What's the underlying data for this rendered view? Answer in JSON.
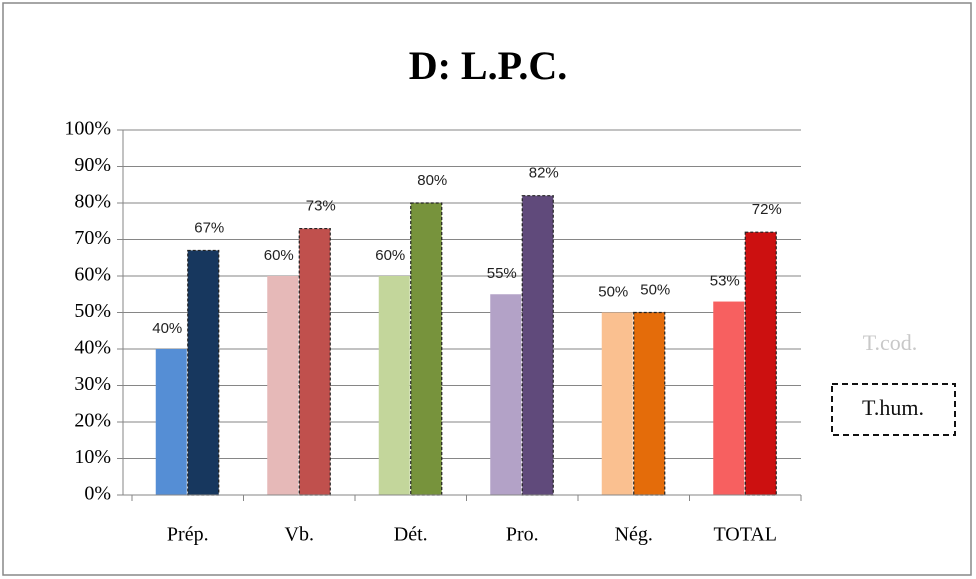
{
  "chart_data": {
    "type": "bar",
    "title": "D: L.P.C.",
    "categories": [
      "Prép.",
      "Vb.",
      "Dét.",
      "Pro.",
      "Nég.",
      "TOTAL"
    ],
    "series": [
      {
        "name": "T.cod.",
        "colors": [
          "#558ed5",
          "#e6b9b8",
          "#c3d69b",
          "#b3a2c7",
          "#fac090",
          "#f76060"
        ],
        "values": [
          40,
          60,
          60,
          55,
          50,
          53
        ],
        "value_labels": [
          "40%",
          "60%",
          "60%",
          "55%",
          "50%",
          "53%"
        ]
      },
      {
        "name": "T.hum.",
        "colors": [
          "#17375e",
          "#c0504d",
          "#77933c",
          "#604a7b",
          "#e46c0a",
          "#cc1010"
        ],
        "values": [
          67,
          73,
          80,
          82,
          50,
          72
        ],
        "value_labels": [
          "67%",
          "73%",
          "80%",
          "82%",
          "50%",
          "72%"
        ]
      }
    ],
    "ylim": [
      0,
      100
    ],
    "yticks": [
      {
        "value": 0,
        "label": "0%"
      },
      {
        "value": 10,
        "label": "10%"
      },
      {
        "value": 20,
        "label": "20%"
      },
      {
        "value": 30,
        "label": "30%"
      },
      {
        "value": 40,
        "label": "40%"
      },
      {
        "value": 50,
        "label": "50%"
      },
      {
        "value": 60,
        "label": "60%"
      },
      {
        "value": 70,
        "label": "70%"
      },
      {
        "value": 80,
        "label": "80%"
      },
      {
        "value": 90,
        "label": "90%"
      },
      {
        "value": 100,
        "label": "100%"
      }
    ],
    "grid": true
  }
}
